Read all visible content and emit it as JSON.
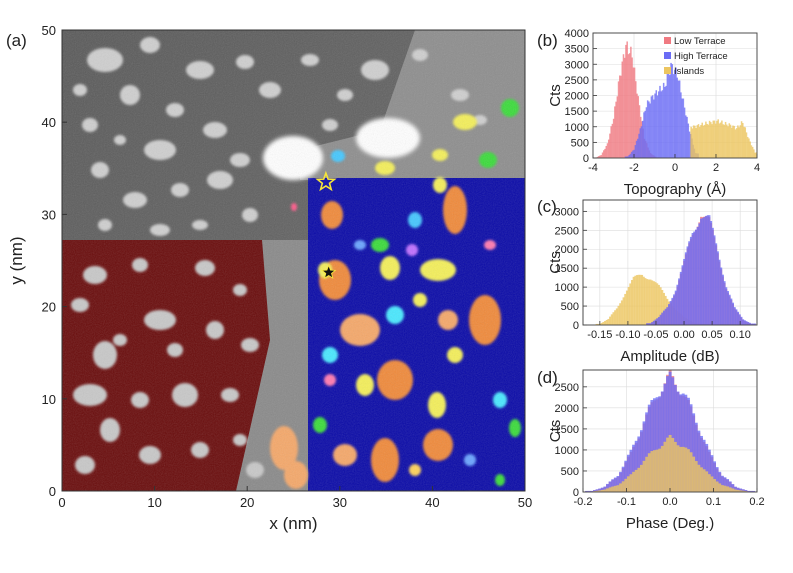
{
  "colors": {
    "low_terrace": "#cc0000",
    "high_terrace": "#0000cc",
    "islands": "#e6b02a",
    "hist_low": "#f07a82",
    "hist_high": "#6a6cf5",
    "hist_islands": "#ecc560"
  },
  "chart_data": [
    {
      "panel_label": "(a)",
      "type": "heatmap",
      "xlabel": "x (nm)",
      "ylabel": "y (nm)",
      "xlim": [
        0,
        50
      ],
      "ylim": [
        0,
        50
      ],
      "xticks": [
        "0",
        "10",
        "20",
        "30",
        "40",
        "50"
      ],
      "yticks": [
        "0",
        "10",
        "20",
        "30",
        "40",
        "50"
      ],
      "markers": [
        {
          "symbol": "star",
          "style": "outline-yellow",
          "x": 28.5,
          "y": 33.5
        },
        {
          "symbol": "star",
          "style": "filled-black",
          "x": 28.8,
          "y": 23.7
        }
      ]
    },
    {
      "panel_label": "(b)",
      "type": "bar",
      "xlabel": "Topography (Å)",
      "ylabel": "Cts",
      "xlim": [
        -4,
        4
      ],
      "ylim": [
        0,
        4000
      ],
      "xticks": [
        "-4",
        "-2",
        "0",
        "2",
        "4"
      ],
      "yticks": [
        "0",
        "500",
        "1000",
        "1500",
        "2000",
        "2500",
        "3000",
        "3500",
        "4000"
      ],
      "legend_position": "top-right",
      "series": [
        {
          "name": "Low Terrace",
          "color_key": "hist_low",
          "x": [
            -3.9,
            -3.6,
            -3.3,
            -3.0,
            -2.7,
            -2.4,
            -2.1,
            -1.8,
            -1.5,
            -1.2,
            -0.9
          ],
          "values": [
            0,
            100,
            450,
            1300,
            2600,
            3600,
            3300,
            1900,
            650,
            150,
            20
          ]
        },
        {
          "name": "High Terrace",
          "color_key": "hist_high",
          "x": [
            -2.3,
            -2.0,
            -1.7,
            -1.4,
            -1.1,
            -0.8,
            -0.5,
            -0.2,
            0.1,
            0.4,
            0.7,
            1.0
          ],
          "values": [
            50,
            280,
            900,
            1700,
            1950,
            2150,
            2300,
            2950,
            2700,
            1800,
            900,
            150
          ]
        },
        {
          "name": "Islands",
          "color_key": "hist_islands",
          "x": [
            0.9,
            1.2,
            1.5,
            1.8,
            2.1,
            2.4,
            2.7,
            3.0,
            3.3,
            3.6,
            3.9
          ],
          "values": [
            1000,
            1050,
            1100,
            1150,
            1180,
            1100,
            1050,
            950,
            1150,
            600,
            180
          ]
        }
      ]
    },
    {
      "panel_label": "(c)",
      "type": "bar",
      "xlabel": "Amplitude (dB)",
      "ylabel": "Cts",
      "xlim": [
        -0.18,
        0.13
      ],
      "ylim": [
        0,
        3300
      ],
      "xticks": [
        "-0.15",
        "-0.10",
        "-0.05",
        "0.00",
        "0.05",
        "0.10"
      ],
      "yticks": [
        "0",
        "500",
        "1000",
        "1500",
        "2000",
        "2500",
        "3000"
      ],
      "series": [
        {
          "color_key": "hist_islands",
          "x": [
            -0.15,
            -0.135,
            -0.12,
            -0.105,
            -0.09,
            -0.075,
            -0.06,
            -0.045,
            -0.03,
            -0.015,
            0.0,
            0.015,
            0.03
          ],
          "values": [
            30,
            150,
            450,
            850,
            1200,
            1350,
            1250,
            1000,
            700,
            420,
            200,
            80,
            20
          ]
        },
        {
          "color_key": "hist_low",
          "x": [
            -0.06,
            -0.045,
            -0.03,
            -0.015,
            0.0,
            0.015,
            0.03,
            0.045,
            0.06,
            0.075,
            0.09,
            0.105,
            0.12
          ],
          "values": [
            40,
            180,
            450,
            900,
            1600,
            2400,
            3000,
            2700,
            1900,
            1000,
            420,
            130,
            30
          ]
        },
        {
          "color_key": "hist_high",
          "x": [
            -0.06,
            -0.045,
            -0.03,
            -0.015,
            0.0,
            0.015,
            0.03,
            0.045,
            0.06,
            0.075,
            0.09,
            0.105,
            0.12
          ],
          "values": [
            50,
            200,
            480,
            950,
            1650,
            2450,
            2950,
            2750,
            1950,
            1050,
            450,
            150,
            40
          ]
        }
      ]
    },
    {
      "panel_label": "(d)",
      "type": "bar",
      "xlabel": "Phase (Deg.)",
      "ylabel": "Cts",
      "xlim": [
        -0.2,
        0.2
      ],
      "ylim": [
        0,
        2900
      ],
      "xticks": [
        "-0.2",
        "-0.1",
        "0.0",
        "0.1",
        "0.2"
      ],
      "yticks": [
        "0",
        "500",
        "1000",
        "1500",
        "2000",
        "2500"
      ],
      "series": [
        {
          "color_key": "hist_low",
          "x": [
            -0.18,
            -0.15,
            -0.12,
            -0.09,
            -0.06,
            -0.03,
            0.0,
            0.03,
            0.06,
            0.09,
            0.12,
            0.15,
            0.18
          ],
          "values": [
            20,
            120,
            380,
            900,
            1650,
            2300,
            2750,
            2350,
            1650,
            900,
            380,
            120,
            20
          ]
        },
        {
          "color_key": "hist_high",
          "x": [
            -0.18,
            -0.15,
            -0.12,
            -0.09,
            -0.06,
            -0.03,
            0.0,
            0.03,
            0.06,
            0.09,
            0.12,
            0.15,
            0.18
          ],
          "values": [
            25,
            130,
            400,
            950,
            1700,
            2350,
            2700,
            2400,
            1700,
            950,
            400,
            130,
            25
          ]
        },
        {
          "color_key": "hist_islands",
          "x": [
            -0.18,
            -0.15,
            -0.12,
            -0.09,
            -0.06,
            -0.03,
            0.0,
            0.03,
            0.06,
            0.09,
            0.12,
            0.15,
            0.18
          ],
          "values": [
            10,
            60,
            170,
            400,
            750,
            1050,
            1280,
            1100,
            760,
            400,
            170,
            60,
            10
          ]
        }
      ]
    }
  ]
}
